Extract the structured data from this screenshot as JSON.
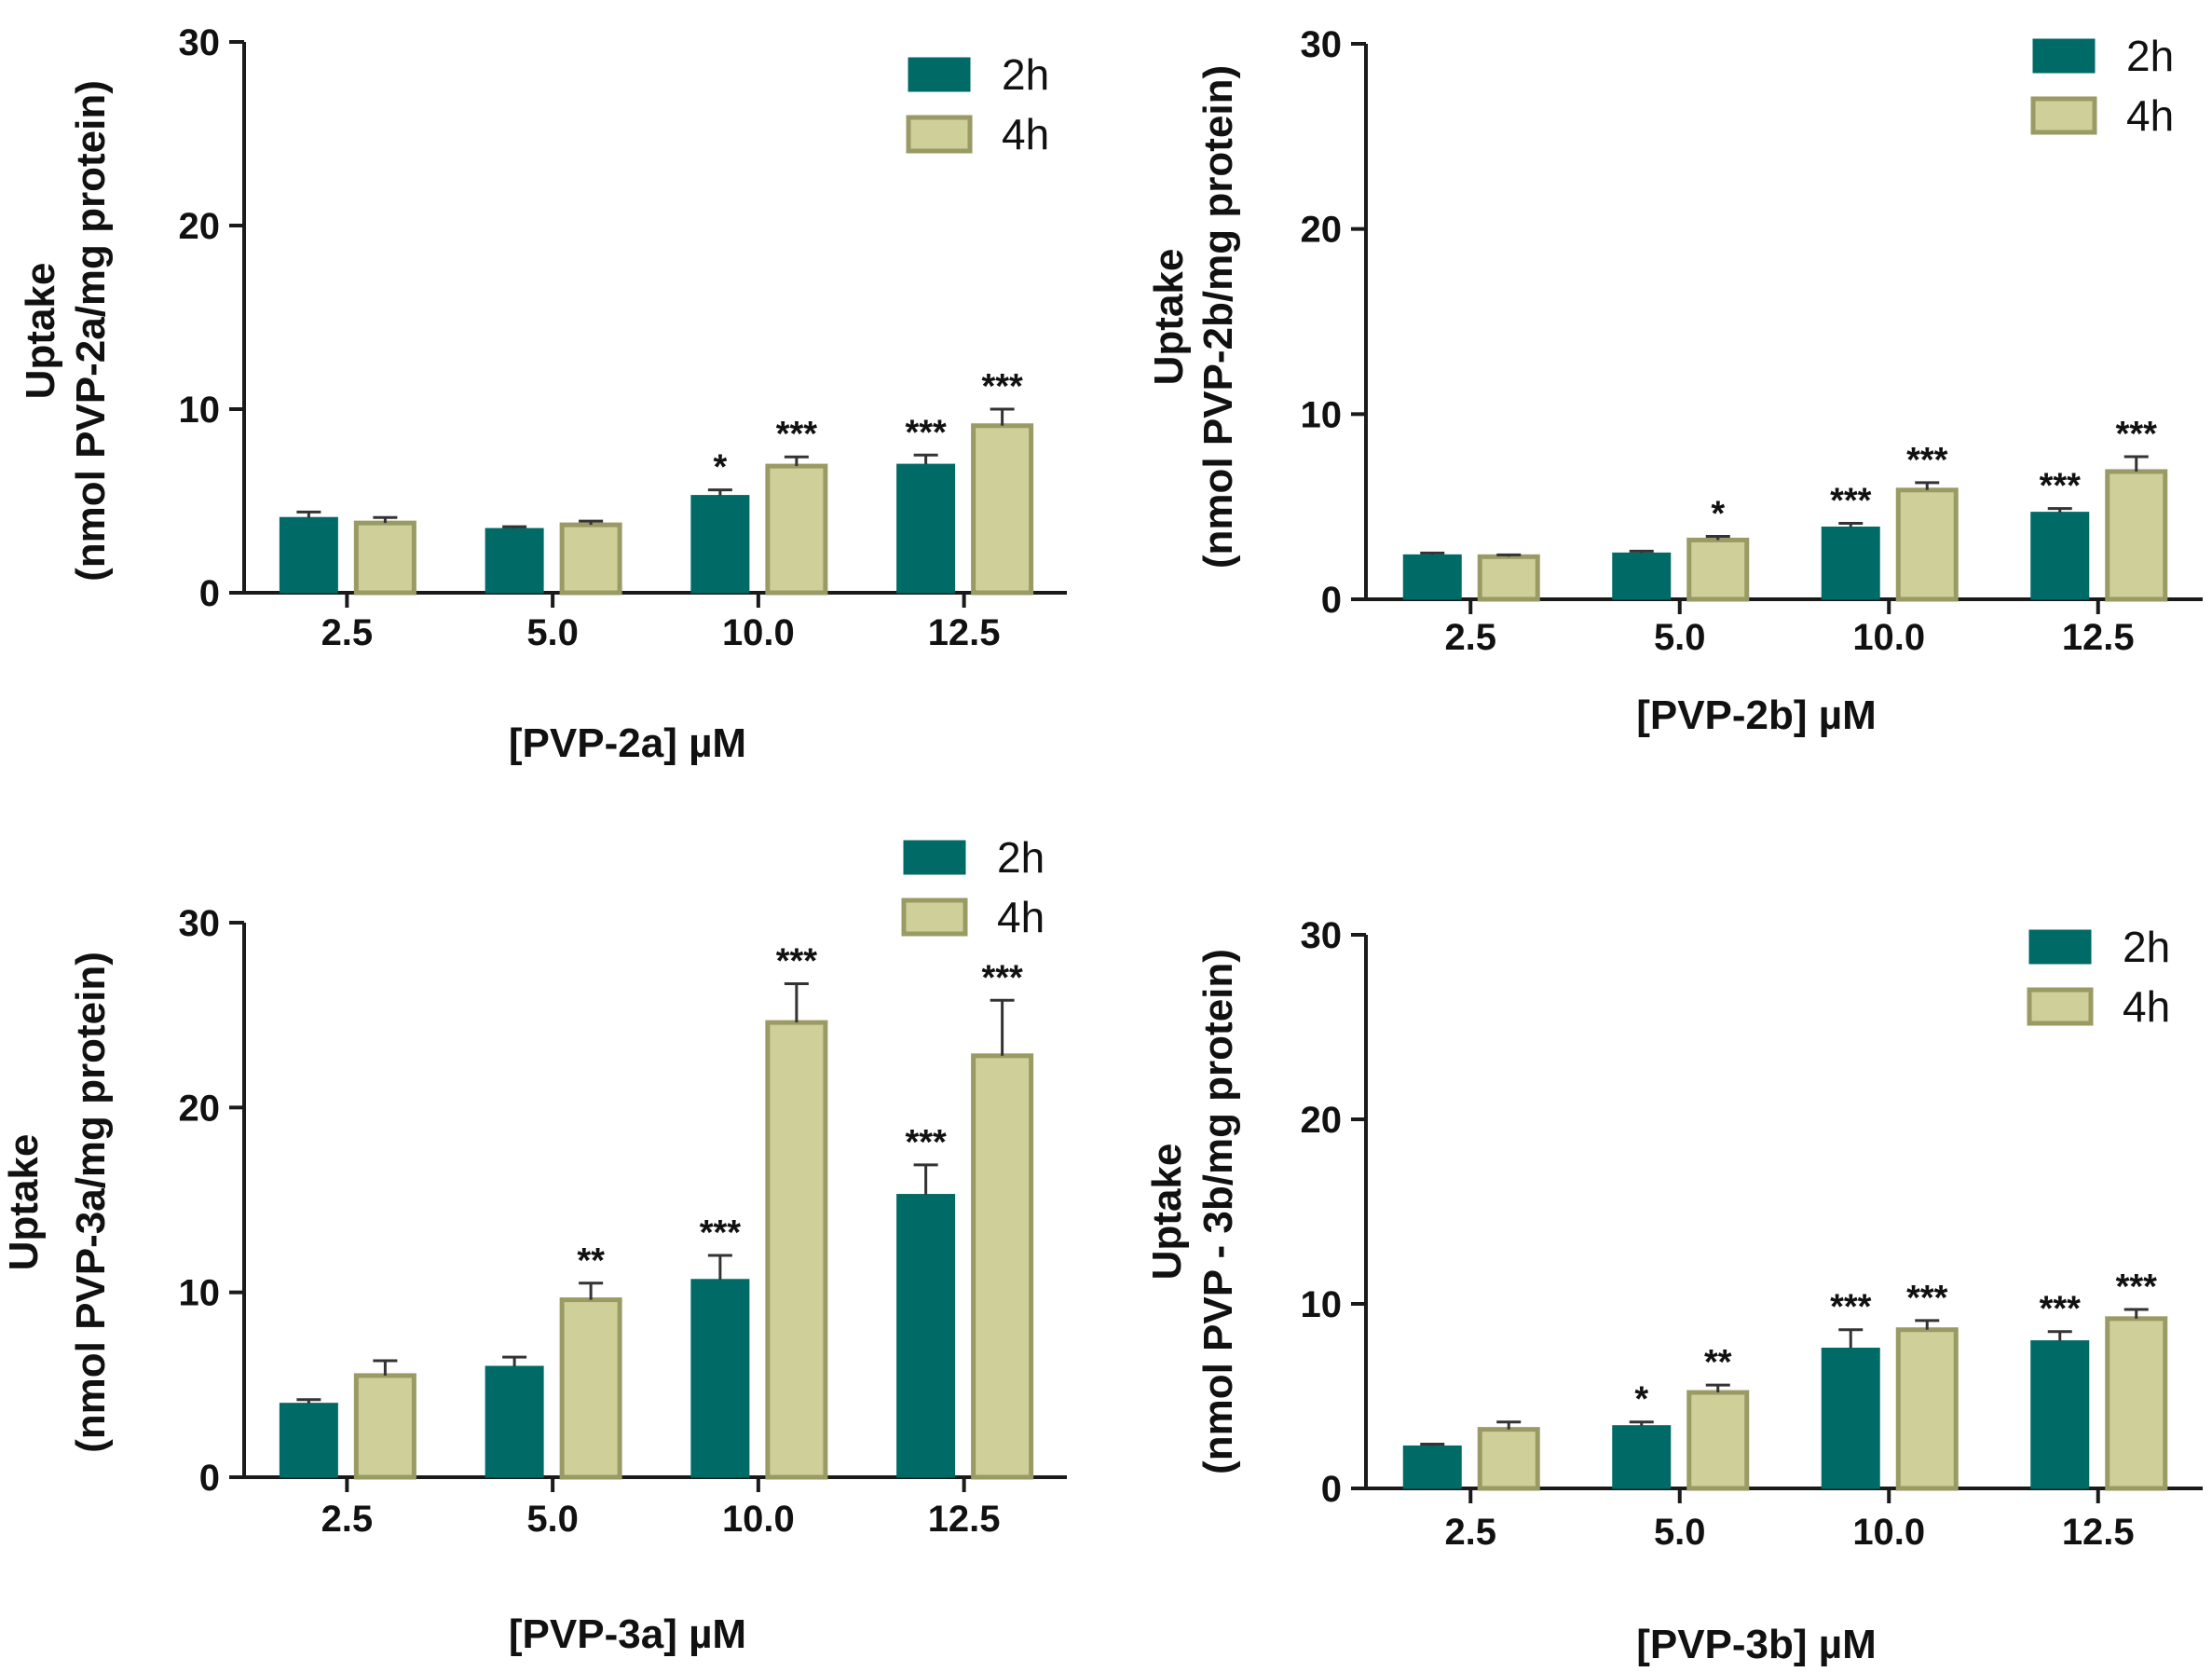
{
  "chart_data": [
    {
      "type": "bar",
      "categories": [
        "2.5",
        "5.0",
        "10.0",
        "12.5"
      ],
      "xlabel": "[PVP-2a] µM",
      "ylabel_line1": "Uptake",
      "ylabel_line2": "(nmol PVP-2a/mg protein)",
      "ylim": [
        0,
        30
      ],
      "yticks": [
        "0",
        "10",
        "20",
        "30"
      ],
      "legend_position": "top-right",
      "series": [
        {
          "name": "2h",
          "color": "#006a66",
          "values": [
            4.1,
            3.5,
            5.3,
            7.0
          ],
          "errors": [
            0.3,
            0.1,
            0.3,
            0.5
          ],
          "sig": [
            "",
            "",
            "*",
            "***"
          ]
        },
        {
          "name": "4h",
          "color": "#cfcf9a",
          "values": [
            3.8,
            3.7,
            6.9,
            9.1
          ],
          "errors": [
            0.3,
            0.2,
            0.5,
            0.9
          ],
          "sig": [
            "",
            "",
            "***",
            "***"
          ]
        }
      ]
    },
    {
      "type": "bar",
      "categories": [
        "2.5",
        "5.0",
        "10.0",
        "12.5"
      ],
      "xlabel": "[PVP-2b] µM",
      "ylabel_line1": "Uptake",
      "ylabel_line2": "(nmol PVP-2b/mg protein)",
      "ylim": [
        0,
        30
      ],
      "yticks": [
        "0",
        "10",
        "20",
        "30"
      ],
      "legend_position": "top-right",
      "series": [
        {
          "name": "2h",
          "color": "#006a66",
          "values": [
            2.4,
            2.5,
            3.9,
            4.7
          ],
          "errors": [
            0.1,
            0.1,
            0.2,
            0.2
          ],
          "sig": [
            "",
            "",
            "***",
            "***"
          ]
        },
        {
          "name": "4h",
          "color": "#cfcf9a",
          "values": [
            2.3,
            3.2,
            5.9,
            6.9
          ],
          "errors": [
            0.1,
            0.2,
            0.4,
            0.8
          ],
          "sig": [
            "",
            "*",
            "***",
            "***"
          ]
        }
      ]
    },
    {
      "type": "bar",
      "categories": [
        "2.5",
        "5.0",
        "10.0",
        "12.5"
      ],
      "xlabel": "[PVP-3a] µM",
      "ylabel_line1": "Uptake",
      "ylabel_line2": "(nmol PVP-3a/mg protein)",
      "ylim": [
        0,
        30
      ],
      "yticks": [
        "0",
        "10",
        "20",
        "30"
      ],
      "legend_position": "top-right",
      "series": [
        {
          "name": "2h",
          "color": "#006a66",
          "values": [
            4.0,
            6.0,
            10.7,
            15.3
          ],
          "errors": [
            0.2,
            0.5,
            1.3,
            1.6
          ],
          "sig": [
            "",
            "",
            "***",
            "***"
          ]
        },
        {
          "name": "4h",
          "color": "#cfcf9a",
          "values": [
            5.5,
            9.6,
            24.6,
            22.8
          ],
          "errors": [
            0.8,
            0.9,
            2.1,
            3.0
          ],
          "sig": [
            "",
            "**",
            "***",
            "***"
          ]
        }
      ]
    },
    {
      "type": "bar",
      "categories": [
        "2.5",
        "5.0",
        "10.0",
        "12.5"
      ],
      "xlabel": "[PVP-3b] µM",
      "ylabel_line1": "Uptake",
      "ylabel_line2": "(nmol PVP - 3b/mg protein)",
      "ylim": [
        0,
        30
      ],
      "yticks": [
        "0",
        "10",
        "20",
        "30"
      ],
      "legend_position": "top-right",
      "series": [
        {
          "name": "2h",
          "color": "#006a66",
          "values": [
            2.3,
            3.4,
            7.6,
            8.0
          ],
          "errors": [
            0.1,
            0.2,
            1.0,
            0.5
          ],
          "sig": [
            "",
            "*",
            "***",
            "***"
          ]
        },
        {
          "name": "4h",
          "color": "#cfcf9a",
          "values": [
            3.2,
            5.2,
            8.6,
            9.2
          ],
          "errors": [
            0.4,
            0.4,
            0.5,
            0.5
          ],
          "sig": [
            "",
            "**",
            "***",
            "***"
          ]
        }
      ]
    }
  ]
}
